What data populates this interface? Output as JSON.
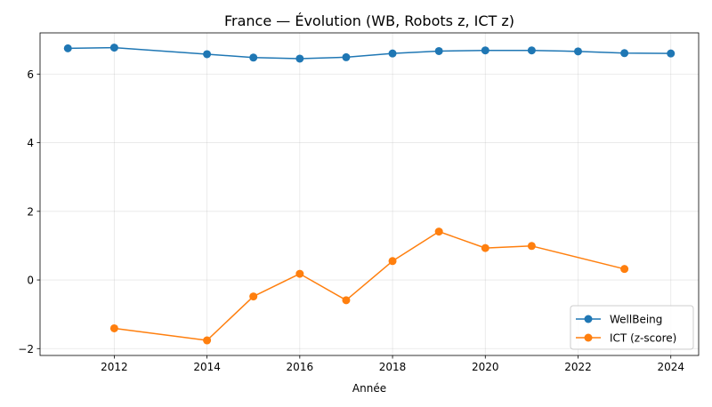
{
  "chart_data": {
    "type": "line",
    "title": "France — Évolution (WB, Robots z, ICT z)",
    "xlabel": "Année",
    "ylabel": "",
    "xlim": [
      2010.4,
      2024.6
    ],
    "ylim": [
      -2.2,
      7.2
    ],
    "xticks": [
      2012,
      2014,
      2016,
      2018,
      2020,
      2022,
      2024
    ],
    "yticks": [
      -2,
      0,
      2,
      4,
      6
    ],
    "grid": true,
    "legend_position": "lower-right",
    "series": [
      {
        "name": "WellBeing",
        "color": "#1f77b4",
        "x": [
          2011,
          2012,
          2014,
          2015,
          2016,
          2017,
          2018,
          2019,
          2020,
          2021,
          2022,
          2023,
          2024
        ],
        "y": [
          6.75,
          6.77,
          6.58,
          6.48,
          6.45,
          6.49,
          6.6,
          6.67,
          6.69,
          6.69,
          6.66,
          6.61,
          6.6
        ]
      },
      {
        "name": "ICT (z-score)",
        "color": "#ff7f0e",
        "x": [
          2012,
          2014,
          2015,
          2016,
          2017,
          2018,
          2019,
          2020,
          2021,
          2023
        ],
        "y": [
          -1.41,
          -1.76,
          -0.48,
          0.18,
          -0.59,
          0.55,
          1.41,
          0.93,
          0.99,
          0.32
        ]
      }
    ]
  }
}
